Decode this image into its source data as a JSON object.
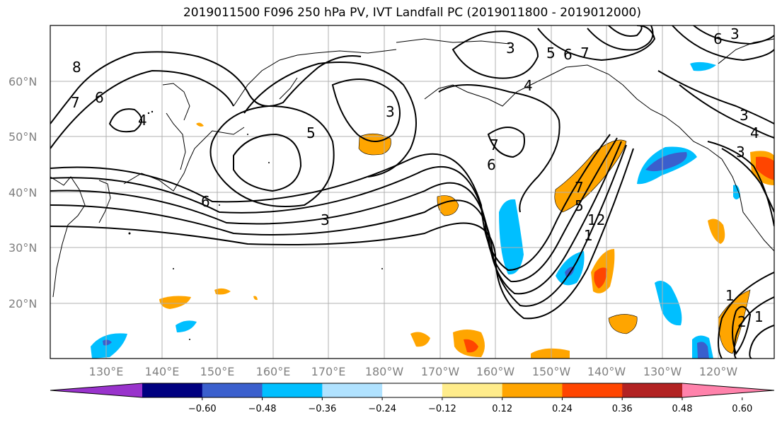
{
  "title": "2019011500 F096 250 hPa PV, IVT Landfall PC (2019011800 - 2019012000)",
  "lat_labels": [
    "60°N",
    "50°N",
    "40°N",
    "30°N",
    "20°N"
  ],
  "lon_labels": [
    "130°E",
    "140°E",
    "150°E",
    "160°E",
    "170°E",
    "180°W",
    "170°W",
    "160°W",
    "150°W",
    "140°W",
    "130°W",
    "120°W"
  ],
  "contour_labels": [
    "8",
    "7",
    "6",
    "4",
    "6",
    "5",
    "3",
    "3",
    "5",
    "6",
    "7",
    "3",
    "4",
    "3",
    "7",
    "6",
    "6",
    "3",
    "7",
    "5",
    "12",
    "1",
    "3",
    "4",
    "1",
    "2",
    "1"
  ],
  "colorbar": {
    "colors": [
      "#9933cc",
      "#000080",
      "#3a5fcd",
      "#00bfff",
      "#b0e2ff",
      "#ffffff",
      "#ffec8b",
      "#ffa500",
      "#ff4500",
      "#b22222",
      "#ff82ab"
    ],
    "ticks": [
      "−0.60",
      "−0.48",
      "−0.36",
      "−0.24",
      "−0.12",
      "0.12",
      "0.24",
      "0.36",
      "0.48",
      "0.60"
    ]
  }
}
